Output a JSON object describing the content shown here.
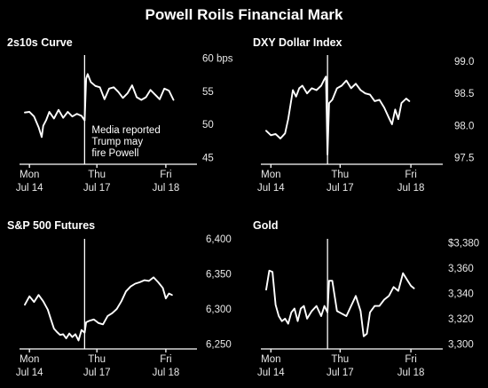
{
  "title": "Powell Roils Financial Mark",
  "chart_data": [
    {
      "type": "line",
      "title": "2s10s Curve",
      "ylim": [
        44,
        61
      ],
      "yticks": [
        45,
        50,
        55,
        60
      ],
      "ytick_labels": [
        "45",
        "50",
        "55",
        "60 bps"
      ],
      "x_range": [
        0,
        5.5
      ],
      "xticks": [
        0.15,
        2.35,
        4.6
      ],
      "xtick_labels_top": [
        "Mon",
        "Thu",
        "Fri"
      ],
      "xtick_labels_bottom": [
        "Jul 14",
        "Jul 17",
        "Jul 18"
      ],
      "event_x": 1.95,
      "annotation": [
        "Media reported",
        "Trump may",
        "fire Powell"
      ],
      "series": [
        {
          "x": [
            0.0,
            0.15,
            0.3,
            0.45,
            0.55,
            0.6,
            0.7,
            0.8,
            0.95,
            1.1,
            1.25,
            1.4,
            1.55,
            1.7,
            1.85,
            1.95,
            2.0,
            2.05,
            2.15,
            2.3,
            2.45,
            2.6,
            2.75,
            2.9,
            3.05,
            3.2,
            3.35,
            3.5,
            3.65,
            3.8,
            3.95,
            4.1,
            4.25,
            4.4,
            4.55,
            4.7,
            4.85
          ],
          "y": [
            51.8,
            51.9,
            51.2,
            49.6,
            48.1,
            49.8,
            50.7,
            51.9,
            50.9,
            52.2,
            51.0,
            51.9,
            51.2,
            51.6,
            51.3,
            50.6,
            56.9,
            57.6,
            56.4,
            55.8,
            55.6,
            53.8,
            55.4,
            55.6,
            54.9,
            54.0,
            54.7,
            55.9,
            54.1,
            53.7,
            54.1,
            55.2,
            54.5,
            53.8,
            55.4,
            55.1,
            53.7
          ]
        }
      ]
    },
    {
      "type": "line",
      "title": "DXY Dollar Index",
      "ylim": [
        97.4,
        99.15
      ],
      "yticks": [
        97.5,
        98.0,
        98.5,
        99.0
      ],
      "ytick_labels": [
        "97.5",
        "98.0",
        "98.5",
        "99.0"
      ],
      "x_range": [
        0,
        5.5
      ],
      "xticks": [
        0.15,
        2.35,
        4.6
      ],
      "xtick_labels_top": [
        "Mon",
        "Thu",
        "Fri"
      ],
      "xtick_labels_bottom": [
        "Jul 14",
        "Jul 17",
        "Jul 18"
      ],
      "event_x": 1.95,
      "annotation": [],
      "series": [
        {
          "x": [
            0.0,
            0.15,
            0.3,
            0.45,
            0.6,
            0.7,
            0.85,
            0.95,
            1.05,
            1.15,
            1.3,
            1.45,
            1.6,
            1.75,
            1.85,
            1.9,
            1.95,
            2.0,
            2.1,
            2.25,
            2.4,
            2.55,
            2.7,
            2.85,
            3.0,
            3.15,
            3.3,
            3.45,
            3.6,
            3.75,
            3.9,
            4.0,
            4.1,
            4.2,
            4.3,
            4.45,
            4.55
          ],
          "y": [
            97.92,
            97.85,
            97.87,
            97.8,
            97.88,
            98.1,
            98.55,
            98.45,
            98.58,
            98.62,
            98.5,
            98.58,
            98.55,
            98.62,
            98.72,
            98.76,
            97.55,
            98.35,
            98.4,
            98.58,
            98.62,
            98.7,
            98.58,
            98.65,
            98.55,
            98.5,
            98.48,
            98.38,
            98.4,
            98.28,
            98.12,
            98.02,
            98.25,
            98.1,
            98.35,
            98.42,
            98.38
          ]
        }
      ]
    },
    {
      "type": "line",
      "title": "S&P 500 Futures",
      "ylim": [
        6243,
        6405
      ],
      "yticks": [
        6250,
        6300,
        6350,
        6400
      ],
      "ytick_labels": [
        "6,250",
        "6,300",
        "6,350",
        "6,400"
      ],
      "x_range": [
        0,
        5.5
      ],
      "xticks": [
        0.15,
        2.35,
        4.6
      ],
      "xtick_labels_top": [
        "Mon",
        "Thu",
        "Fri"
      ],
      "xtick_labels_bottom": [
        "Jul 14",
        "Jul 17",
        "Jul 18"
      ],
      "event_x": 1.95,
      "annotation": [],
      "series": [
        {
          "x": [
            0.0,
            0.15,
            0.3,
            0.45,
            0.6,
            0.75,
            0.85,
            0.95,
            1.05,
            1.15,
            1.25,
            1.35,
            1.45,
            1.55,
            1.65,
            1.75,
            1.85,
            1.95,
            2.0,
            2.1,
            2.25,
            2.4,
            2.55,
            2.7,
            2.85,
            3.0,
            3.15,
            3.3,
            3.45,
            3.6,
            3.75,
            3.9,
            4.05,
            4.2,
            4.35,
            4.5,
            4.6,
            4.7,
            4.8
          ],
          "y": [
            6306,
            6318,
            6310,
            6320,
            6311,
            6299,
            6285,
            6272,
            6267,
            6263,
            6264,
            6258,
            6265,
            6260,
            6264,
            6255,
            6270,
            6266,
            6281,
            6283,
            6285,
            6280,
            6278,
            6290,
            6294,
            6300,
            6311,
            6325,
            6332,
            6336,
            6338,
            6341,
            6340,
            6345,
            6338,
            6330,
            6315,
            6322,
            6320
          ]
        }
      ]
    },
    {
      "type": "line",
      "title": "Gold",
      "ylim": [
        3296,
        3386
      ],
      "yticks": [
        3300,
        3320,
        3340,
        3360,
        3380
      ],
      "ytick_labels": [
        "3,300",
        "3,320",
        "3,340",
        "3,360",
        "$3,380"
      ],
      "x_range": [
        0,
        5.5
      ],
      "xticks": [
        0.15,
        2.35,
        4.6
      ],
      "xtick_labels_top": [
        "Mon",
        "Thu",
        "Fri"
      ],
      "xtick_labels_bottom": [
        "Jul 14",
        "Jul 17",
        "Jul 18"
      ],
      "event_x": 1.95,
      "annotation": [],
      "series": [
        {
          "x": [
            0.0,
            0.1,
            0.2,
            0.3,
            0.4,
            0.5,
            0.6,
            0.7,
            0.8,
            0.9,
            1.0,
            1.1,
            1.2,
            1.3,
            1.45,
            1.6,
            1.75,
            1.85,
            1.95,
            2.0,
            2.1,
            2.25,
            2.4,
            2.55,
            2.7,
            2.85,
            3.0,
            3.1,
            3.2,
            3.3,
            3.45,
            3.6,
            3.75,
            3.9,
            4.05,
            4.2,
            4.35,
            4.5,
            4.6,
            4.7
          ],
          "y": [
            3343,
            3358,
            3357,
            3331,
            3322,
            3318,
            3320,
            3316,
            3325,
            3328,
            3318,
            3328,
            3330,
            3320,
            3326,
            3330,
            3322,
            3330,
            3325,
            3350,
            3350,
            3326,
            3324,
            3322,
            3330,
            3338,
            3326,
            3306,
            3308,
            3325,
            3330,
            3330,
            3335,
            3338,
            3345,
            3342,
            3356,
            3350,
            3346,
            3344
          ]
        }
      ]
    }
  ]
}
